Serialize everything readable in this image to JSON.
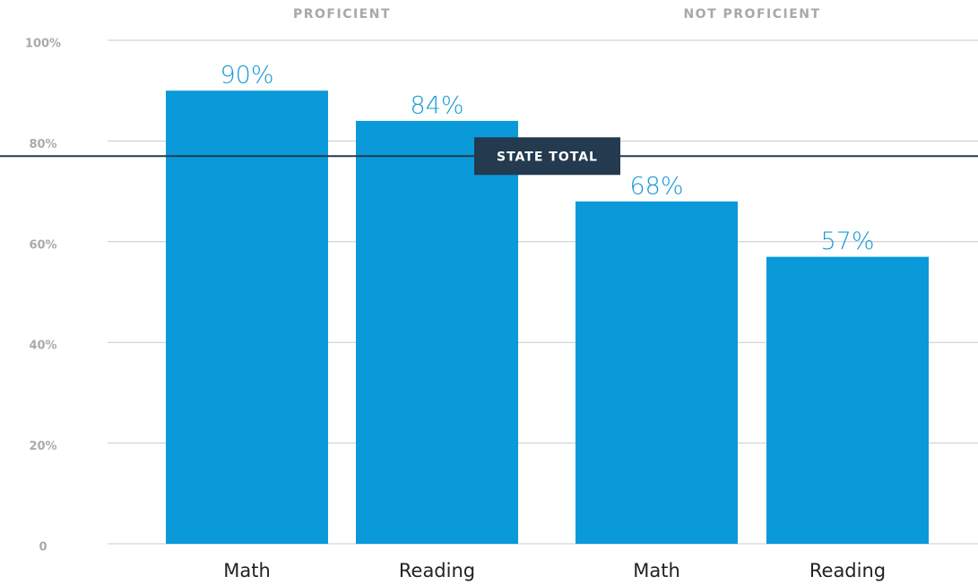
{
  "chart_data": {
    "type": "bar",
    "groups": [
      "PROFICIENT",
      "NOT PROFICIENT"
    ],
    "categories": [
      "Math",
      "Reading",
      "Math",
      "Reading"
    ],
    "values": [
      90,
      84,
      68,
      57
    ],
    "value_labels": [
      "90%",
      "84%",
      "68%",
      "57%"
    ],
    "color": "#0a9ad9",
    "ylim": [
      0,
      100
    ],
    "yticks": [
      0,
      {
        "value": 20,
        "label": "20%"
      },
      {
        "value": 40,
        "label": "40%"
      },
      {
        "value": 60,
        "label": "60%"
      },
      {
        "value": 80,
        "label": "80%"
      },
      {
        "value": 100,
        "label": "100%"
      }
    ],
    "grid": true,
    "reference_line": {
      "label": "STATE TOTAL",
      "value": 77,
      "color": "#233a4f"
    }
  }
}
